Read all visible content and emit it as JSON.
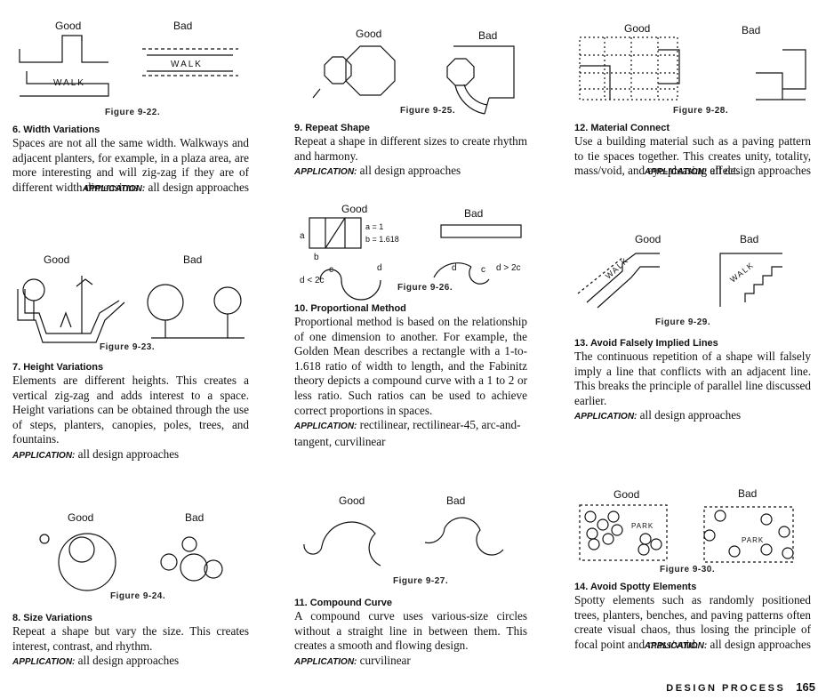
{
  "good_label": "Good",
  "bad_label": "Bad",
  "sections": {
    "s6": {
      "figure": "Figure 9-22.",
      "walk_good": "WALK",
      "walk_bad": "WALK",
      "heading": "6. Width Variations",
      "body": "Spaces are not all the same width. Walkways and adjacent planters, for example, in a plaza area, are more interesting and will zig-zag if they are of different width dimensions.",
      "app_label": "APPLICATION:",
      "app_text": "all design approaches"
    },
    "s7": {
      "figure": "Figure 9-23.",
      "heading": "7. Height Variations",
      "body": "Elements are different heights. This creates a vertical zig-zag and adds interest to a space. Height variations can be obtained through the use of steps, planters, canopies, poles, trees, and fountains.",
      "app_label": "APPLICATION:",
      "app_text": "all design approaches"
    },
    "s8": {
      "figure": "Figure 9-24.",
      "heading": "8. Size Variations",
      "body": "Repeat a shape but vary the size. This creates interest, contrast, and rhythm.",
      "app_label": "APPLICATION:",
      "app_text": "all design approaches"
    },
    "s9": {
      "figure": "Figure 9-25.",
      "heading": "9. Repeat Shape",
      "body": "Repeat a shape in different sizes to create rhythm and harmony.",
      "app_label": "APPLICATION:",
      "app_text": "all design approaches"
    },
    "s10": {
      "figure": "Figure 9-26.",
      "ratio_a": "a = 1",
      "ratio_b": "b = 1.618",
      "dim_a": "a",
      "dim_b": "b",
      "curve_good": "d < 2c",
      "curve_bad": "d > 2c",
      "curve_c": "c",
      "curve_d": "d",
      "heading": "10. Proportional Method",
      "body": "Proportional method is based on the relationship of one dimension to another. For example, the Golden Mean describes a rectangle with a 1-to-1.618 ratio of width to length, and the Fabinitz theory depicts a compound curve with a 1 to 2 or less ratio. Such ratios can be used to achieve correct proportions in spaces.",
      "app_label": "APPLICATION:",
      "app_text": "rectilinear, rectilinear-45, arc-and-tangent, curvilinear"
    },
    "s11": {
      "figure": "Figure 9-27.",
      "heading": "11. Compound Curve",
      "body": "A compound curve uses various-size circles without a straight line in between them. This creates a smooth and flowing design.",
      "app_label": "APPLICATION:",
      "app_text": "curvilinear"
    },
    "s12": {
      "figure": "Figure 9-28.",
      "heading": "12. Material Connect",
      "body": "Use a building material such as a paving pattern to tie spaces together. This creates unity, totality, mass/void, and eye-pleasing effect.",
      "app_label": "APPLICATION:",
      "app_text": "all design approaches"
    },
    "s13": {
      "figure": "Figure 9-29.",
      "walk_good": "WALK",
      "walk_bad": "WALK",
      "heading": "13. Avoid Falsely Implied Lines",
      "body": "The continuous repetition of a shape will falsely imply a line that conflicts with an adjacent line. This breaks the principle of parallel line discussed earlier.",
      "app_label": "APPLICATION:",
      "app_text": "all design approaches"
    },
    "s14": {
      "figure": "Figure 9-30.",
      "park_good": "PARK",
      "park_bad": "PARK",
      "heading": "14. Avoid Spotty Elements",
      "body": "Spotty elements such as randomly positioned trees, planters, benches, and paving patterns often create visual chaos, thus losing the principle of focal point and mass/void.",
      "app_label": "APPLICATION:",
      "app_text": "all design approaches"
    }
  },
  "footer": {
    "label": "DESIGN PROCESS",
    "page": "165"
  }
}
